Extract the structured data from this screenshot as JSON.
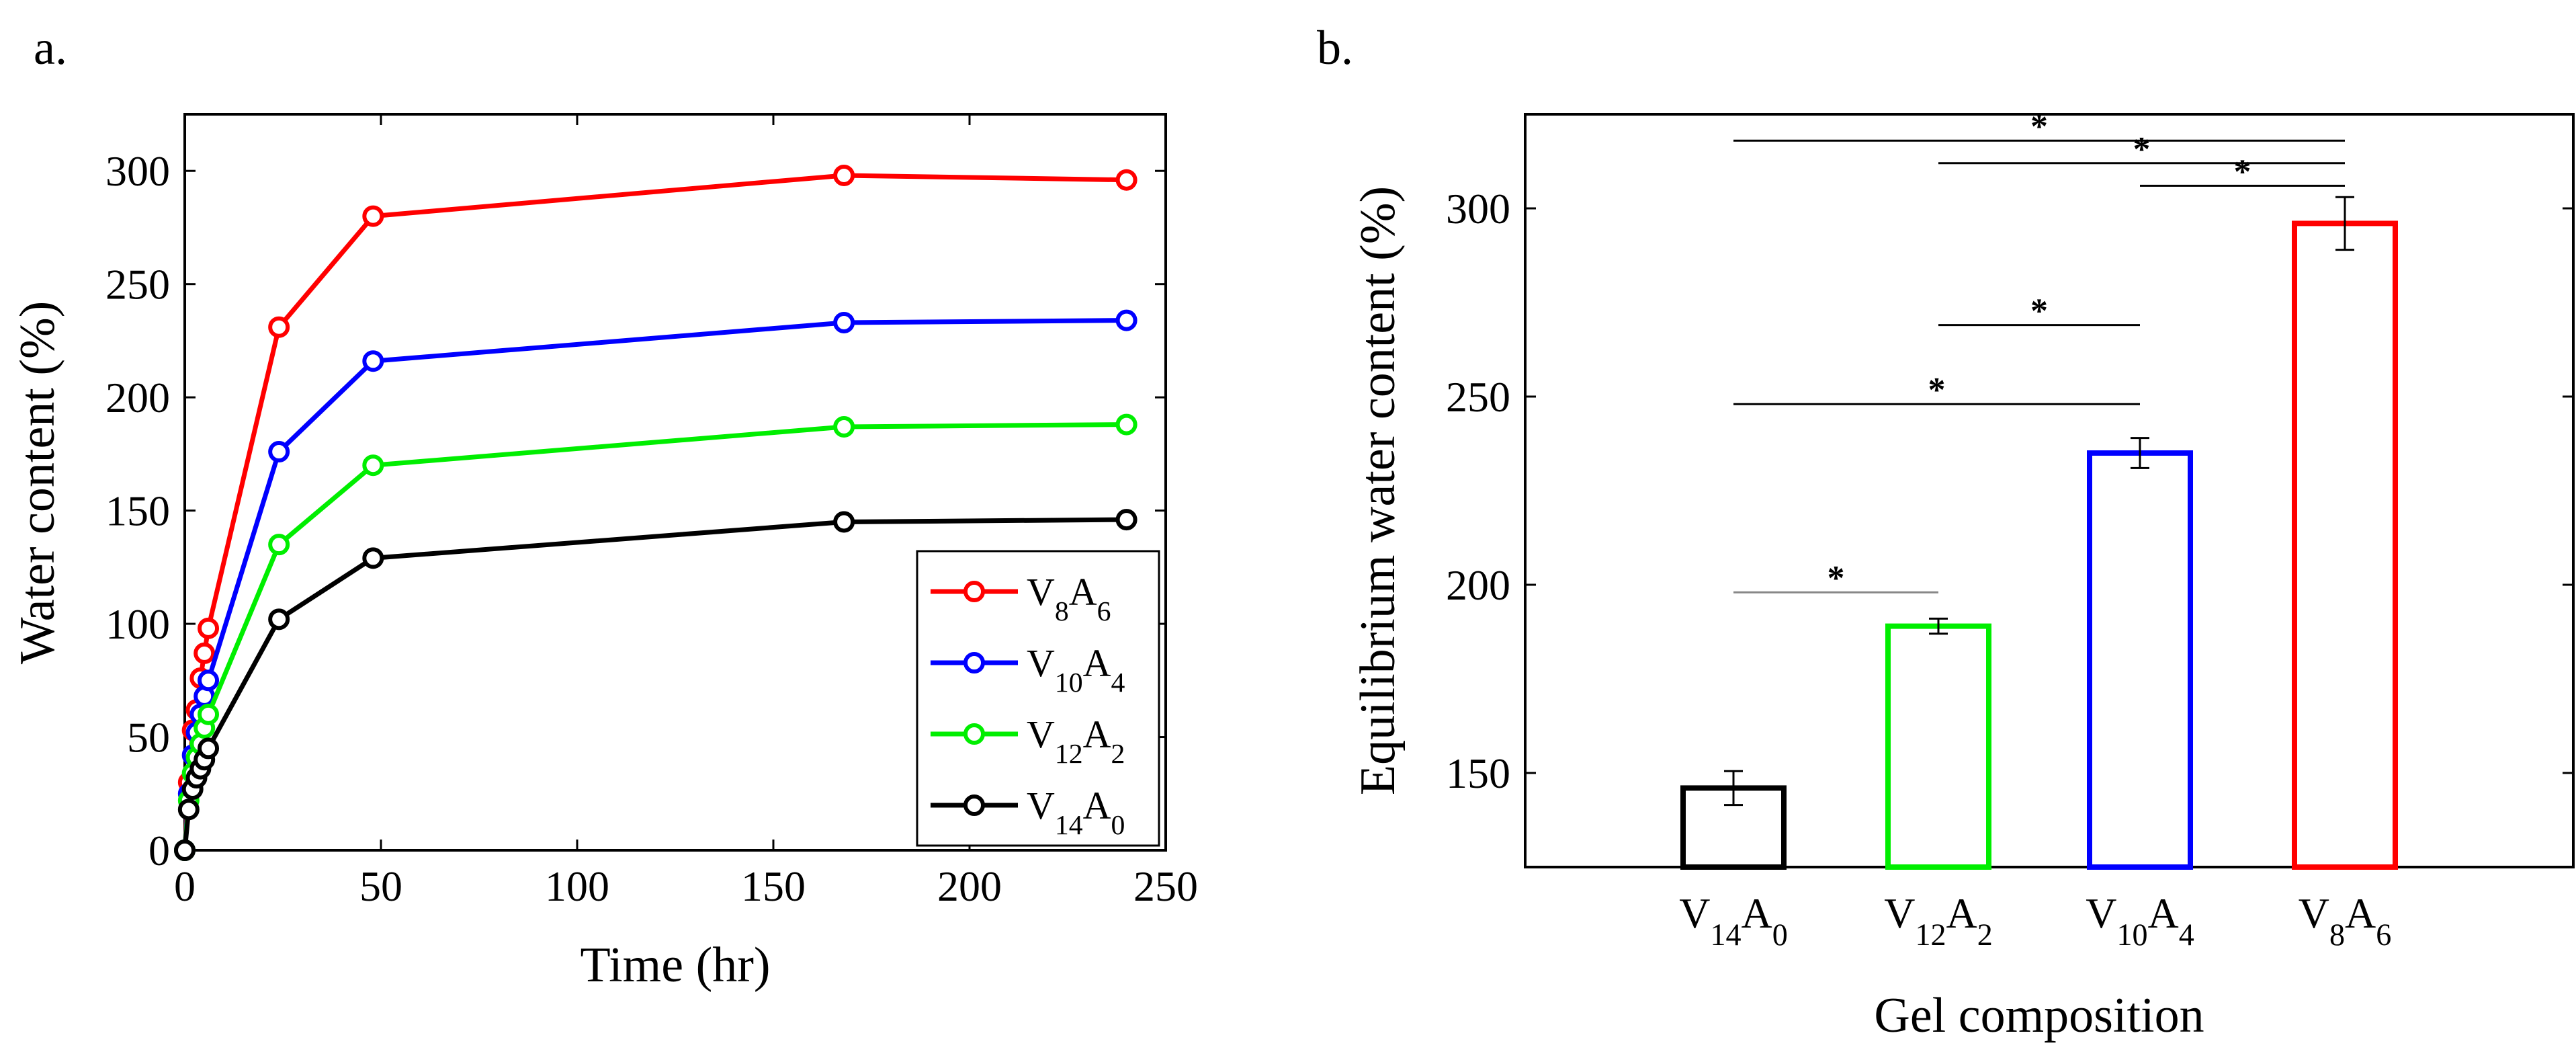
{
  "chart_data": [
    {
      "type": "line",
      "panel_label": "a.",
      "xlabel": "Time (hr)",
      "ylabel": "Water content (%)",
      "xlim": [
        0,
        250
      ],
      "ylim": [
        0,
        325
      ],
      "xticks": [
        0,
        50,
        100,
        150,
        200,
        250
      ],
      "yticks": [
        0,
        50,
        100,
        150,
        200,
        250,
        300
      ],
      "grid": false,
      "legend_placement": "bottom-right",
      "x": [
        0,
        1,
        2,
        3,
        4,
        5,
        6,
        24,
        48,
        168,
        240
      ],
      "series": [
        {
          "name": "V8A6",
          "base": "V",
          "sub1": "8",
          "mid": "A",
          "sub2": "6",
          "color": "#ff0000",
          "values": [
            0,
            30,
            53,
            62,
            76,
            87,
            98,
            231,
            280,
            298,
            296
          ]
        },
        {
          "name": "V10A4",
          "base": "V",
          "sub1": "10",
          "mid": "A",
          "sub2": "4",
          "color": "#0000ff",
          "values": [
            0,
            25,
            42,
            52,
            60,
            68,
            75,
            176,
            216,
            233,
            234
          ]
        },
        {
          "name": "V12A2",
          "base": "V",
          "sub1": "12",
          "mid": "A",
          "sub2": "2",
          "color": "#00ee00",
          "values": [
            0,
            22,
            34,
            41,
            47,
            54,
            60,
            135,
            170,
            187,
            188
          ]
        },
        {
          "name": "V14A0",
          "base": "V",
          "sub1": "14",
          "mid": "A",
          "sub2": "0",
          "color": "#000000",
          "values": [
            0,
            18,
            27,
            32,
            36,
            40,
            45,
            102,
            129,
            145,
            146
          ]
        }
      ]
    },
    {
      "type": "bar",
      "panel_label": "b.",
      "xlabel": "Gel composition",
      "ylabel": "Equilibrium water content (%)",
      "ylim": [
        125,
        325
      ],
      "yticks": [
        150,
        200,
        250,
        300
      ],
      "grid": false,
      "categories": [
        {
          "name": "V14A0",
          "base": "V",
          "sub1": "14",
          "mid": "A",
          "sub2": "0"
        },
        {
          "name": "V12A2",
          "base": "V",
          "sub1": "12",
          "mid": "A",
          "sub2": "2"
        },
        {
          "name": "V10A4",
          "base": "V",
          "sub1": "10",
          "mid": "A",
          "sub2": "4"
        },
        {
          "name": "V8A6",
          "base": "V",
          "sub1": "8",
          "mid": "A",
          "sub2": "6"
        }
      ],
      "values": [
        146,
        189,
        235,
        296
      ],
      "errors": [
        4.5,
        2,
        4,
        7
      ],
      "colors": [
        "#000000",
        "#00ee00",
        "#0000ff",
        "#ff0000"
      ],
      "significance": [
        {
          "from": 0,
          "to": 3,
          "y": 318,
          "label": "*",
          "color": "#000000"
        },
        {
          "from": 1,
          "to": 3,
          "y": 312,
          "label": "*",
          "color": "#000000"
        },
        {
          "from": 2,
          "to": 3,
          "y": 306,
          "label": "*",
          "color": "#000000"
        },
        {
          "from": 1,
          "to": 2,
          "y": 269,
          "label": "*",
          "color": "#000000"
        },
        {
          "from": 0,
          "to": 2,
          "y": 248,
          "label": "*",
          "color": "#000000"
        },
        {
          "from": 0,
          "to": 1,
          "y": 198,
          "label": "*",
          "color": "#888888"
        }
      ]
    }
  ]
}
